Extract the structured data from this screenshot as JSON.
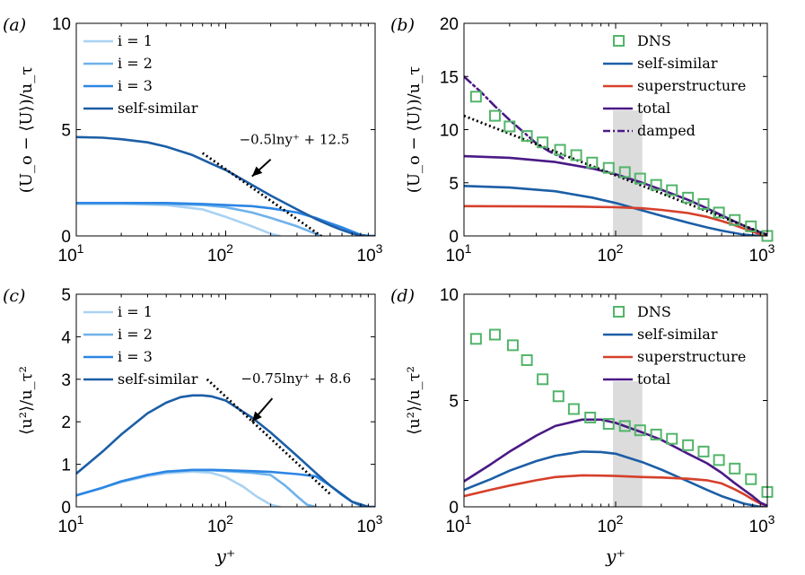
{
  "colors": {
    "i1": "#a9d2f3",
    "i2": "#6fb2ea",
    "i3": "#2c86e4",
    "self": "#1c5ea6",
    "super": "#d6402b",
    "total": "#4a1a86",
    "damped": "#4a1a86",
    "dns": "#52b56a",
    "fit": "#000000",
    "shade": "#dcdcdc"
  },
  "chart_data": [
    {
      "panel_label": "(a)",
      "type": "line",
      "xscale": "log",
      "xlim": [
        10,
        1000
      ],
      "ylim": [
        0,
        10
      ],
      "yticks": [
        "0",
        "5",
        "10"
      ],
      "xticks": [
        {
          "base": "10",
          "exp": "1"
        },
        {
          "base": "10",
          "exp": "2"
        },
        {
          "base": "10",
          "exp": "3"
        }
      ],
      "ylabel": "(U_o − ⟨U⟩)/u_τ",
      "xlabel": "",
      "legend": {
        "position": "top-left",
        "entries": [
          "i = 1",
          "i = 2",
          "i = 3",
          "self-similar"
        ]
      },
      "series": [
        {
          "name": "i = 1",
          "color_key": "i1",
          "style": "solid",
          "x": [
            10,
            20,
            40,
            70,
            100,
            150,
            200,
            230
          ],
          "y": [
            1.5,
            1.5,
            1.45,
            1.25,
            0.9,
            0.45,
            0.1,
            0
          ]
        },
        {
          "name": "i = 2",
          "color_key": "i2",
          "style": "solid",
          "x": [
            10,
            20,
            40,
            70,
            100,
            150,
            200,
            300,
            400,
            430
          ],
          "y": [
            1.55,
            1.55,
            1.5,
            1.45,
            1.35,
            1.1,
            0.85,
            0.45,
            0.1,
            0
          ]
        },
        {
          "name": "i = 3",
          "color_key": "i3",
          "style": "solid",
          "x": [
            10,
            20,
            40,
            70,
            100,
            150,
            200,
            300,
            400,
            500,
            600,
            800,
            900
          ],
          "y": [
            1.55,
            1.55,
            1.55,
            1.5,
            1.45,
            1.4,
            1.3,
            1.1,
            0.85,
            0.6,
            0.4,
            0.05,
            0
          ]
        },
        {
          "name": "self-similar",
          "color_key": "self",
          "style": "solid",
          "x": [
            10,
            15,
            20,
            30,
            40,
            60,
            80,
            100,
            150,
            200,
            300,
            400,
            500,
            600,
            700,
            800,
            900,
            1000
          ],
          "y": [
            4.65,
            4.62,
            4.55,
            4.4,
            4.2,
            3.8,
            3.4,
            3.1,
            2.4,
            1.9,
            1.25,
            0.8,
            0.5,
            0.28,
            0.12,
            0.03,
            0,
            0
          ]
        },
        {
          "name": "fit",
          "color_key": "fit",
          "style": "dotted",
          "x": [
            70,
            500
          ],
          "y": [
            3.9,
            -0.3
          ]
        }
      ],
      "annotation": {
        "text": "−0.5lny⁺ + 12.5",
        "arrow_from": [
          200,
          3.6
        ],
        "arrow_to": [
          150,
          2.8
        ]
      }
    },
    {
      "panel_label": "(b)",
      "type": "line",
      "xscale": "log",
      "xlim": [
        10,
        1000
      ],
      "ylim": [
        0,
        20
      ],
      "yticks": [
        "0",
        "5",
        "10",
        "15",
        "20"
      ],
      "xticks": [
        {
          "base": "10",
          "exp": "1"
        },
        {
          "base": "10",
          "exp": "2"
        },
        {
          "base": "10",
          "exp": "3"
        }
      ],
      "ylabel": "(U_o − ⟨U⟩)/u_τ",
      "xlabel": "",
      "shade": [
        96,
        150
      ],
      "legend": {
        "position": "top-right",
        "entries": [
          "DNS",
          "self-similar",
          "superstructure",
          "total",
          "damped"
        ]
      },
      "series": [
        {
          "name": "DNS",
          "color_key": "dns",
          "style": "markers",
          "x": [
            12,
            16,
            20,
            26,
            33,
            43,
            55,
            70,
            90,
            115,
            145,
            185,
            235,
            300,
            380,
            480,
            610,
            780,
            1000
          ],
          "y": [
            13.1,
            11.3,
            10.3,
            9.4,
            8.8,
            8.1,
            7.6,
            6.9,
            6.4,
            6.0,
            5.4,
            4.8,
            4.3,
            3.6,
            3.0,
            2.2,
            1.5,
            0.9,
            0.0
          ]
        },
        {
          "name": "self-similar",
          "color_key": "self",
          "style": "solid",
          "x": [
            10,
            20,
            40,
            70,
            100,
            150,
            200,
            300,
            400,
            500,
            700,
            900,
            1000
          ],
          "y": [
            4.7,
            4.55,
            4.2,
            3.6,
            3.1,
            2.4,
            1.9,
            1.25,
            0.8,
            0.5,
            0.12,
            0,
            0
          ]
        },
        {
          "name": "superstructure",
          "color_key": "super",
          "style": "solid",
          "x": [
            10,
            30,
            60,
            100,
            150,
            200,
            300,
            400,
            500,
            600,
            700,
            800,
            900,
            1000
          ],
          "y": [
            2.8,
            2.78,
            2.75,
            2.7,
            2.6,
            2.45,
            2.15,
            1.8,
            1.4,
            1.05,
            0.7,
            0.4,
            0.15,
            0
          ]
        },
        {
          "name": "total",
          "color_key": "total",
          "style": "solid",
          "x": [
            10,
            20,
            40,
            70,
            100,
            150,
            200,
            300,
            400,
            500,
            600,
            800,
            1000
          ],
          "y": [
            7.5,
            7.35,
            6.95,
            6.35,
            5.8,
            5.0,
            4.35,
            3.4,
            2.6,
            1.95,
            1.4,
            0.6,
            0.1
          ]
        },
        {
          "name": "damped",
          "color_key": "damped",
          "style": "dashdot",
          "x": [
            10,
            13,
            16,
            20,
            25,
            30,
            36,
            45
          ],
          "y": [
            15.0,
            13.5,
            12.2,
            10.9,
            9.7,
            8.7,
            8.0,
            7.3
          ]
        },
        {
          "name": "fit",
          "color_key": "fit",
          "style": "dotted",
          "x": [
            10,
            1000
          ],
          "y": [
            11.3,
            0.1
          ]
        }
      ]
    },
    {
      "panel_label": "(c)",
      "type": "line",
      "xscale": "log",
      "xlim": [
        10,
        1000
      ],
      "ylim": [
        0,
        5
      ],
      "yticks": [
        "0",
        "1",
        "2",
        "3",
        "4",
        "5"
      ],
      "xticks": [
        {
          "base": "10",
          "exp": "1"
        },
        {
          "base": "10",
          "exp": "2"
        },
        {
          "base": "10",
          "exp": "3"
        }
      ],
      "ylabel": "⟨u²⟩/u_τ²",
      "xlabel": "y⁺",
      "legend": {
        "position": "top-left",
        "entries": [
          "i = 1",
          "i = 2",
          "i = 3",
          "self-similar"
        ]
      },
      "series": [
        {
          "name": "i = 1",
          "color_key": "i1",
          "style": "solid",
          "x": [
            10,
            15,
            20,
            30,
            40,
            60,
            80,
            100,
            130,
            160,
            200,
            230
          ],
          "y": [
            0.27,
            0.45,
            0.58,
            0.72,
            0.79,
            0.83,
            0.8,
            0.7,
            0.48,
            0.25,
            0.05,
            0
          ]
        },
        {
          "name": "i = 2",
          "color_key": "i2",
          "style": "solid",
          "x": [
            10,
            15,
            20,
            30,
            40,
            60,
            80,
            100,
            150,
            200,
            250,
            300,
            350,
            400
          ],
          "y": [
            0.27,
            0.45,
            0.6,
            0.75,
            0.82,
            0.86,
            0.86,
            0.84,
            0.8,
            0.75,
            0.5,
            0.25,
            0.05,
            0
          ]
        },
        {
          "name": "i = 3",
          "color_key": "i3",
          "style": "solid",
          "x": [
            10,
            15,
            20,
            30,
            40,
            60,
            80,
            100,
            150,
            200,
            300,
            400,
            500,
            600,
            700,
            800,
            900
          ],
          "y": [
            0.27,
            0.45,
            0.6,
            0.75,
            0.83,
            0.87,
            0.87,
            0.86,
            0.84,
            0.82,
            0.77,
            0.72,
            0.5,
            0.28,
            0.12,
            0.03,
            0
          ]
        },
        {
          "name": "self-similar",
          "color_key": "self",
          "style": "solid",
          "x": [
            10,
            15,
            20,
            30,
            40,
            50,
            60,
            70,
            80,
            100,
            150,
            200,
            300,
            400,
            500,
            700,
            900,
            1000
          ],
          "y": [
            0.78,
            1.3,
            1.7,
            2.2,
            2.45,
            2.58,
            2.62,
            2.62,
            2.6,
            2.5,
            2.1,
            1.75,
            1.2,
            0.8,
            0.5,
            0.12,
            0,
            0
          ]
        },
        {
          "name": "fit",
          "color_key": "fit",
          "style": "dotted",
          "x": [
            75,
            500
          ],
          "y": [
            3.0,
            0.3
          ]
        }
      ],
      "annotation": {
        "text": "−0.75lny⁺ + 8.6",
        "arrow_from": [
          205,
          2.55
        ],
        "arrow_to": [
          150,
          2.0
        ]
      }
    },
    {
      "panel_label": "(d)",
      "type": "line",
      "xscale": "log",
      "xlim": [
        10,
        1000
      ],
      "ylim": [
        0,
        10
      ],
      "yticks": [
        "0",
        "5",
        "10"
      ],
      "xticks": [
        {
          "base": "10",
          "exp": "1"
        },
        {
          "base": "10",
          "exp": "2"
        },
        {
          "base": "10",
          "exp": "3"
        }
      ],
      "ylabel": "⟨u²⟩/u_τ²",
      "xlabel": "y⁺",
      "shade": [
        96,
        150
      ],
      "legend": {
        "position": "top-right",
        "entries": [
          "DNS",
          "self-similar",
          "superstructure",
          "total"
        ]
      },
      "series": [
        {
          "name": "DNS",
          "color_key": "dns",
          "style": "markers",
          "x": [
            12,
            16,
            21,
            26,
            33,
            42,
            53,
            68,
            90,
            115,
            145,
            185,
            235,
            300,
            380,
            480,
            610,
            780,
            1000
          ],
          "y": [
            7.9,
            8.1,
            7.6,
            6.9,
            6.0,
            5.2,
            4.6,
            4.2,
            3.9,
            3.8,
            3.6,
            3.4,
            3.2,
            2.9,
            2.6,
            2.2,
            1.8,
            1.3,
            0.7
          ]
        },
        {
          "name": "self-similar",
          "color_key": "self",
          "style": "solid",
          "x": [
            10,
            15,
            20,
            30,
            40,
            60,
            80,
            100,
            150,
            200,
            300,
            400,
            500,
            700,
            900,
            1000
          ],
          "y": [
            0.8,
            1.3,
            1.7,
            2.15,
            2.4,
            2.6,
            2.58,
            2.5,
            2.1,
            1.75,
            1.2,
            0.8,
            0.5,
            0.15,
            0,
            0
          ]
        },
        {
          "name": "superstructure",
          "color_key": "super",
          "style": "solid",
          "x": [
            10,
            15,
            20,
            30,
            40,
            60,
            80,
            100,
            150,
            200,
            300,
            400,
            500,
            600,
            700,
            800,
            900,
            1000
          ],
          "y": [
            0.5,
            0.8,
            1.0,
            1.25,
            1.4,
            1.48,
            1.47,
            1.45,
            1.4,
            1.38,
            1.32,
            1.25,
            1.1,
            0.85,
            0.6,
            0.35,
            0.15,
            0.05
          ]
        },
        {
          "name": "total",
          "color_key": "total",
          "style": "solid",
          "x": [
            10,
            15,
            20,
            30,
            40,
            60,
            80,
            100,
            150,
            200,
            300,
            400,
            500,
            600,
            700,
            800,
            900,
            1000
          ],
          "y": [
            1.2,
            2.0,
            2.6,
            3.35,
            3.8,
            4.1,
            4.1,
            3.95,
            3.5,
            3.15,
            2.5,
            2.05,
            1.6,
            1.15,
            0.8,
            0.5,
            0.2,
            0.05
          ]
        }
      ]
    }
  ]
}
